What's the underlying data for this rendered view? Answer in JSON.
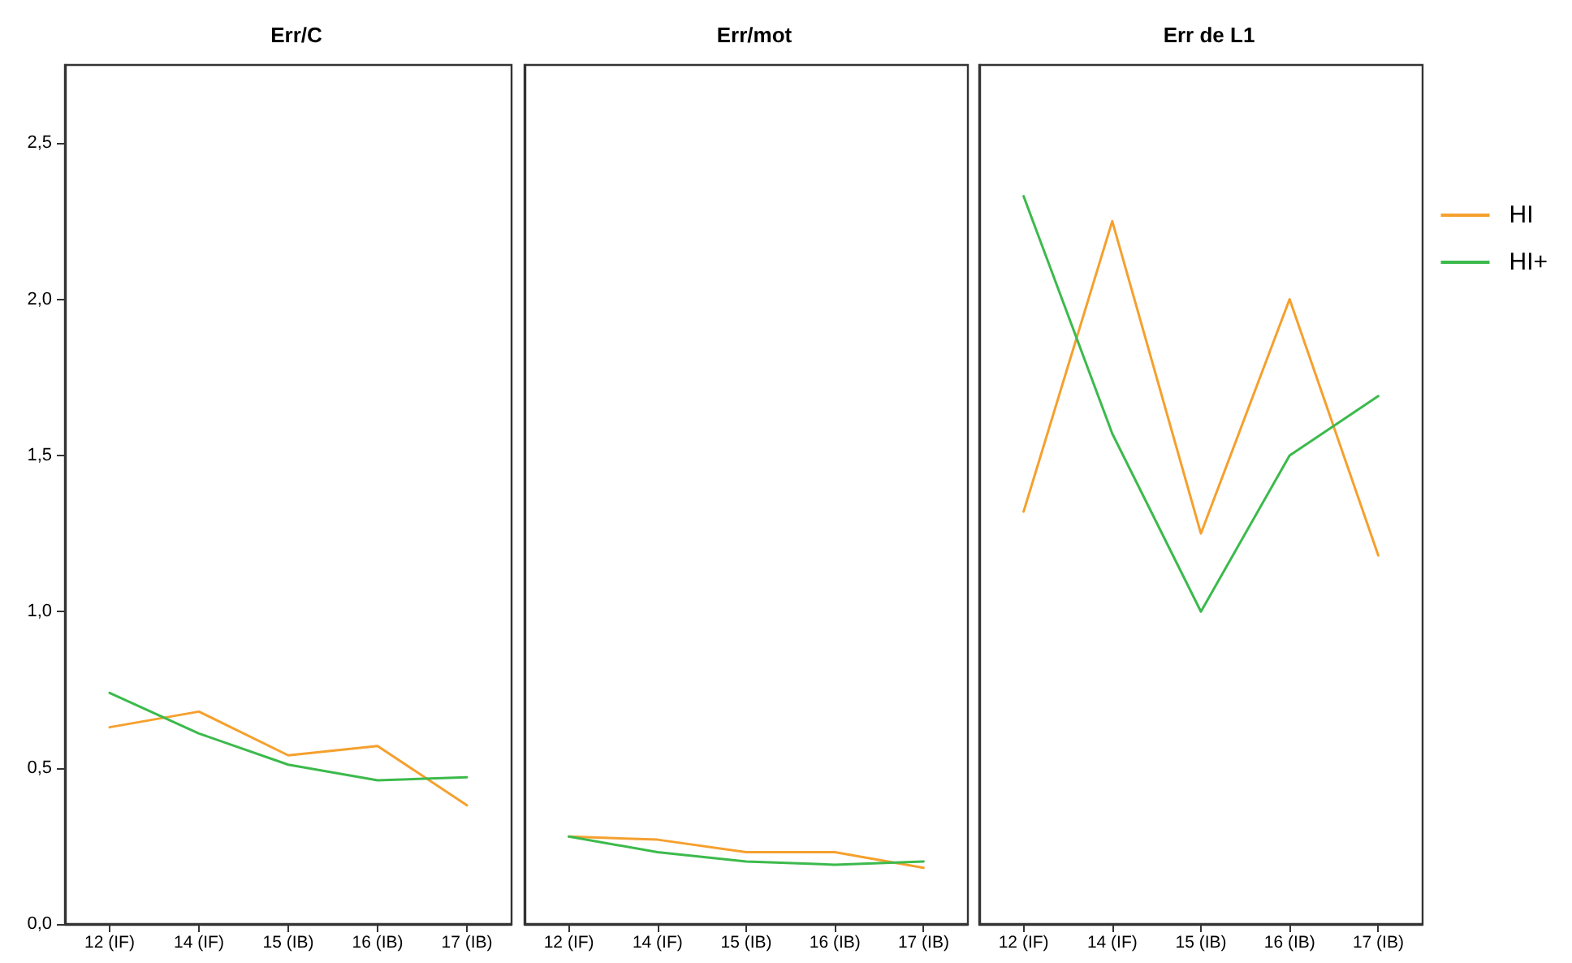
{
  "chart_data": [
    {
      "type": "line",
      "title": "Err/C",
      "categories": [
        "12 (IF)",
        "14 (IF)",
        "15 (IB)",
        "16 (IB)",
        "17 (IB)"
      ],
      "series": [
        {
          "color": "#f5a02e",
          "values": [
            0.63,
            0.68,
            0.54,
            0.57,
            0.38
          ]
        },
        {
          "color": "#3cba4c",
          "values": [
            0.74,
            0.61,
            0.51,
            0.46,
            0.47
          ]
        }
      ],
      "ylim": [
        0,
        2.75
      ],
      "yticks": [
        {
          "value": 0,
          "label": "0,0"
        },
        {
          "value": 0.5,
          "label": "0,5"
        },
        {
          "value": 1,
          "label": "1,0"
        },
        {
          "value": 1.5,
          "label": "1,5"
        },
        {
          "value": 2,
          "label": "2,0"
        },
        {
          "value": 2.5,
          "label": "2,5"
        }
      ],
      "grid": false,
      "legend": false,
      "marker": "none",
      "line_style": "solid"
    },
    {
      "type": "line",
      "title": "Err/mot",
      "categories": [
        "12 (IF)",
        "14 (IF)",
        "15 (IB)",
        "16 (IB)",
        "17 (IB)"
      ],
      "series": [
        {
          "color": "#f5a02e",
          "values": [
            0.28,
            0.27,
            0.23,
            0.23,
            0.18
          ]
        },
        {
          "color": "#3cba4c",
          "values": [
            0.28,
            0.23,
            0.2,
            0.19,
            0.2
          ]
        }
      ],
      "ylim": [
        0,
        2.75
      ],
      "tick_labels": "x",
      "grid": false,
      "legend": false,
      "marker": "none",
      "line_style": "solid"
    },
    {
      "type": "line",
      "title": "Err de L1",
      "categories": [
        "12 (IF)",
        "14 (IF)",
        "15 (IB)",
        "16 (IB)",
        "17 (IB)"
      ],
      "series": [
        {
          "name": "HI",
          "color": "#f5a02e",
          "values": [
            1.32,
            2.25,
            1.25,
            2.0,
            1.18
          ]
        },
        {
          "name": "HI+",
          "color": "#3cba4c",
          "values": [
            2.33,
            1.57,
            1.0,
            1.5,
            1.69
          ]
        }
      ],
      "ylim": [
        0,
        2.75
      ],
      "tick_labels": "x",
      "grid": false,
      "legend": "right",
      "marker": "none",
      "line_style": "solid"
    }
  ]
}
